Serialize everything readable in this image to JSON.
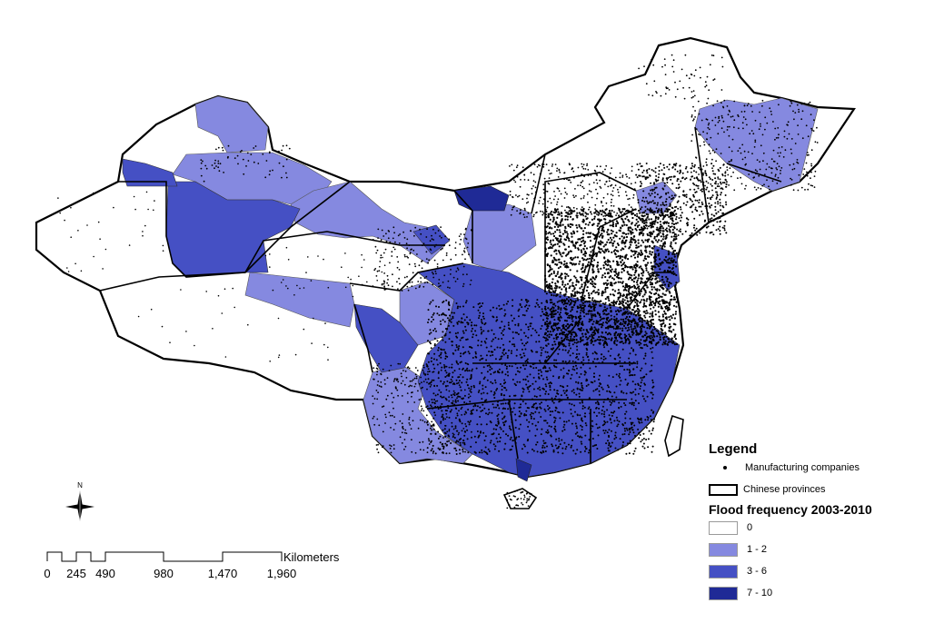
{
  "legend": {
    "title": "Legend",
    "points_label": "Manufacturing companies",
    "boundary_label": "Chinese provinces",
    "flood_title": "Flood frequency 2003-2010",
    "classes": [
      {
        "label": "0",
        "color": "#ffffff"
      },
      {
        "label": "1 - 2",
        "color": "#8589e0"
      },
      {
        "label": "3 - 6",
        "color": "#4550c4"
      },
      {
        "label": "7 - 10",
        "color": "#1f2a96"
      }
    ]
  },
  "scale": {
    "unit": "Kilometers",
    "ticks": [
      "0",
      "245",
      "490",
      "980",
      "1,470",
      "1,960"
    ]
  },
  "north": {
    "label": "N"
  }
}
